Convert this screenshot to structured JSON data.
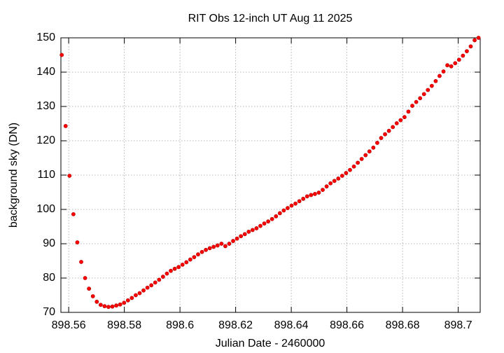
{
  "chart_data": {
    "type": "scatter",
    "title": "RIT Obs 12-inch UT Aug 11 2025",
    "x_label": "Julian Date - 2460000",
    "y_label": "background sky (DN)",
    "color": "#ff0000",
    "grid": true,
    "xlim": [
      898.5572,
      898.7079
    ],
    "ylim": [
      70,
      150
    ],
    "xticks": [
      898.56,
      898.58,
      898.6,
      898.62,
      898.64,
      898.66,
      898.68,
      898.7
    ],
    "yticks": [
      70,
      80,
      90,
      100,
      110,
      120,
      130,
      140,
      150
    ],
    "x": [
      898.5575,
      898.5589,
      898.5603,
      898.5617,
      898.5631,
      898.5645,
      898.5659,
      898.5673,
      898.5687,
      898.5701,
      898.5715,
      898.5729,
      898.5743,
      898.5757,
      898.5771,
      898.5785,
      898.5799,
      898.5813,
      898.5827,
      898.5841,
      898.5855,
      898.5869,
      898.5883,
      898.5897,
      898.5911,
      898.5925,
      898.5939,
      898.5953,
      898.5967,
      898.5981,
      898.5995,
      898.6009,
      898.6023,
      898.6037,
      898.6051,
      898.6065,
      898.6079,
      898.6093,
      898.6107,
      898.6121,
      898.6135,
      898.6149,
      898.6163,
      898.6177,
      898.6191,
      898.6205,
      898.6219,
      898.6233,
      898.6247,
      898.6261,
      898.6275,
      898.6289,
      898.6303,
      898.6317,
      898.6331,
      898.6345,
      898.6359,
      898.6373,
      898.6387,
      898.6401,
      898.6415,
      898.6429,
      898.6443,
      898.6457,
      898.6471,
      898.6485,
      898.6499,
      898.6513,
      898.6527,
      898.6541,
      898.6555,
      898.6569,
      898.6583,
      898.6597,
      898.6611,
      898.6625,
      898.6639,
      898.6653,
      898.6667,
      898.6681,
      898.6695,
      898.6709,
      898.6723,
      898.6737,
      898.6751,
      898.6765,
      898.6779,
      898.6793,
      898.6807,
      898.6821,
      898.6835,
      898.6849,
      898.6863,
      898.6877,
      898.6891,
      898.6905,
      898.6919,
      898.6933,
      898.6947,
      898.6961,
      898.6975,
      898.6989,
      898.7003,
      898.7017,
      898.7031,
      898.7045,
      898.7059,
      898.7073
    ],
    "values": [
      145,
      124.3,
      109.8,
      98.6,
      90.4,
      84.7,
      80,
      76.9,
      74.7,
      73.1,
      72.2,
      71.8,
      71.6,
      71.7,
      72,
      72.3,
      72.8,
      73.5,
      74.2,
      75,
      75.6,
      76.4,
      77.2,
      77.9,
      78.7,
      79.5,
      80.4,
      81.3,
      82.1,
      82.7,
      83.2,
      83.9,
      84.6,
      85.4,
      86.1,
      86.9,
      87.6,
      88.2,
      88.7,
      89.1,
      89.5,
      90,
      89.3,
      90,
      90.8,
      91.5,
      92.2,
      92.8,
      93.5,
      94,
      94.5,
      95.2,
      95.9,
      96.5,
      97.2,
      98,
      98.9,
      99.7,
      100.4,
      101.1,
      101.7,
      102.4,
      103.1,
      103.8,
      104.2,
      104.5,
      104.9,
      105.7,
      106.7,
      107.6,
      108.3,
      109,
      109.8,
      110.6,
      111.5,
      112.5,
      113.6,
      114.7,
      115.8,
      116.9,
      118,
      119.4,
      120.8,
      121.9,
      122.9,
      124,
      125.1,
      126,
      126.9,
      128.5,
      130.2,
      131.3,
      132.4,
      133.6,
      134.8,
      136,
      137.4,
      138.9,
      140.2,
      142,
      141.7,
      142.6,
      143.6,
      144.8,
      146.1,
      147.5,
      149.3,
      150
    ]
  }
}
